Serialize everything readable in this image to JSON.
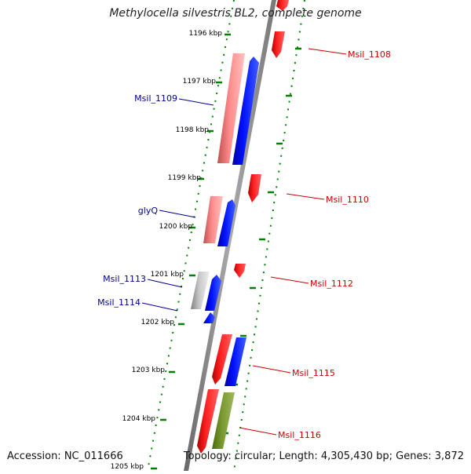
{
  "title": "Methylocella silvestris BL2, complete genome",
  "footer": {
    "accession": "Accession: NC_011666",
    "summary": "Topology: circular; Length: 4,305,430 bp; Genes: 3,872"
  },
  "colors": {
    "forward_cds": "#ff0000",
    "reverse_cds": "#0000ff",
    "rna": "#ff8080",
    "other": "#b0b0b0",
    "olive": "#6b8e23",
    "backbone": "#888888",
    "ticks": "#008000",
    "label_forward": "#cc0000",
    "label_reverse": "#00008b"
  },
  "ticks": [
    {
      "label": "1196 kbp"
    },
    {
      "label": "1197 kbp"
    },
    {
      "label": "1198 kbp"
    },
    {
      "label": "1199 kbp"
    },
    {
      "label": "1200 kbp"
    },
    {
      "label": "1201 kbp"
    },
    {
      "label": "1202 kbp"
    },
    {
      "label": "1203 kbp"
    },
    {
      "label": "1204 kbp"
    },
    {
      "label": "1205 kbp"
    }
  ],
  "gene_labels": [
    {
      "text": "Msil_1108",
      "strand": "forward"
    },
    {
      "text": "Msil_1109",
      "strand": "reverse"
    },
    {
      "text": "Msil_1110",
      "strand": "forward"
    },
    {
      "text": "glyQ",
      "strand": "reverse"
    },
    {
      "text": "Msil_1112",
      "strand": "forward"
    },
    {
      "text": "Msil_1113",
      "strand": "reverse"
    },
    {
      "text": "Msil_1114",
      "strand": "reverse"
    },
    {
      "text": "Msil_1115",
      "strand": "forward"
    },
    {
      "text": "Msil_1116",
      "strand": "forward"
    }
  ]
}
